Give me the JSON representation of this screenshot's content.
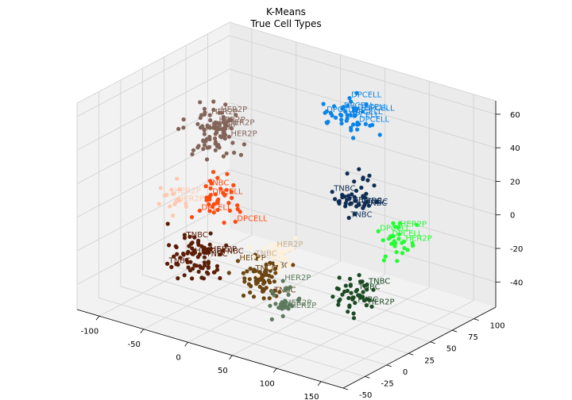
{
  "chart_data": {
    "type": "scatter",
    "projection": "3d",
    "title": "K-Means",
    "subtitle": "True Cell Types",
    "xlabel": "",
    "ylabel": "",
    "zlabel": "",
    "xlim": [
      -125,
      175
    ],
    "ylim": [
      -50,
      125
    ],
    "zlim": [
      -55,
      68
    ],
    "x_ticks": [
      "-100",
      "-50",
      "0",
      "50",
      "100",
      "150"
    ],
    "y_ticks": [
      "-50",
      "-25",
      "0",
      "25",
      "50",
      "75",
      "100"
    ],
    "z_ticks": [
      "-40",
      "-20",
      "0",
      "20",
      "40",
      "60"
    ],
    "grid": true,
    "legend": "none",
    "cell_types": [
      "HER2P",
      "TNBC",
      "DPCELL"
    ],
    "clusters": [
      {
        "color": "#826459",
        "label_color": "#826459",
        "center": [
          -100,
          80,
          20
        ],
        "spread": [
          20,
          16,
          10
        ],
        "n": 90,
        "labels": [
          "HER2P",
          "HER2P",
          "HER2P",
          "HER2P",
          "HER2P",
          "HER2P",
          "HER2P"
        ]
      },
      {
        "color": "#0a84e8",
        "label_color": "#0a84e8",
        "center": [
          40,
          95,
          45
        ],
        "spread": [
          20,
          15,
          9
        ],
        "n": 45,
        "labels": [
          "DPCELL",
          "DPCELL",
          "DPCELL",
          "DPCELL",
          "DPCELL",
          "DPCELL",
          "DPCELL",
          "DPCELL"
        ]
      },
      {
        "color": "#0f2d52",
        "label_color": "#0f2d52",
        "center": [
          70,
          70,
          10
        ],
        "spread": [
          16,
          12,
          10
        ],
        "n": 45,
        "labels": [
          "TNBC",
          "TNBC",
          "TNBC",
          "TNBC",
          "TNBC",
          "TNBC"
        ]
      },
      {
        "color": "#20ff30",
        "label_color": "#20ff30",
        "center": [
          130,
          55,
          -5
        ],
        "spread": [
          14,
          12,
          8
        ],
        "n": 30,
        "labels": [
          "DPCELL",
          "DPCELL",
          "HER2P",
          "HER2P"
        ]
      },
      {
        "color": "#1c4a24",
        "label_color": "#1c4a24",
        "center": [
          110,
          25,
          -30
        ],
        "spread": [
          16,
          14,
          8
        ],
        "n": 45,
        "labels": [
          "TNBC",
          "TNBC",
          "HER2P",
          "TNBC"
        ]
      },
      {
        "color": "#ff4a10",
        "label_color": "#ff4a10",
        "center": [
          -50,
          35,
          0
        ],
        "spread": [
          16,
          14,
          10
        ],
        "n": 40,
        "labels": [
          "DPCELL",
          "DPCELL",
          "TNBC",
          "DPCELL"
        ]
      },
      {
        "color": "#ffc8b0",
        "label_color": "#ffc8b0",
        "center": [
          -105,
          40,
          -10
        ],
        "spread": [
          12,
          10,
          8
        ],
        "n": 18,
        "labels": [
          "HER2P",
          "HER2P"
        ]
      },
      {
        "color": "#5a1e08",
        "label_color": "#5a1e08",
        "center": [
          -45,
          5,
          -25
        ],
        "spread": [
          22,
          16,
          10
        ],
        "n": 80,
        "labels": [
          "TNBC",
          "TNBC",
          "HER2P",
          "TNBC",
          "TNBC",
          "HER2P"
        ]
      },
      {
        "color": "#6b4512",
        "label_color": "#6b4512",
        "center": [
          25,
          10,
          -30
        ],
        "spread": [
          22,
          14,
          8
        ],
        "n": 70,
        "labels": [
          "TNBC",
          "TNBC",
          "HER2P",
          "TNBC"
        ]
      },
      {
        "color": "#fff0d8",
        "label_color": "#c8b090",
        "center": [
          25,
          25,
          -20
        ],
        "spread": [
          18,
          12,
          8
        ],
        "n": 35,
        "labels": [
          "HER2P",
          "TNBC"
        ]
      },
      {
        "color": "#5e7a5e",
        "label_color": "#5e7a5e",
        "center": [
          60,
          0,
          -35
        ],
        "spread": [
          16,
          10,
          8
        ],
        "n": 30,
        "labels": [
          "HER2P",
          "HER2P",
          "HER2P"
        ]
      }
    ]
  }
}
